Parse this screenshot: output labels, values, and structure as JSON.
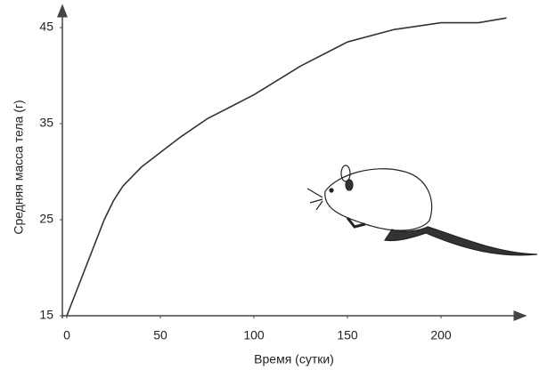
{
  "chart_data": {
    "type": "line",
    "x_label": "Время (сутки)",
    "y_label": "Средняя масса тела (г)",
    "x": [
      0,
      5,
      10,
      15,
      20,
      25,
      30,
      40,
      50,
      60,
      75,
      100,
      125,
      150,
      175,
      200,
      220,
      235
    ],
    "series": [
      {
        "color": "#333333",
        "values": [
          15,
          17.5,
          20,
          22.5,
          25,
          27,
          28.5,
          30.5,
          32,
          33.5,
          35.5,
          38,
          41,
          43.5,
          44.8,
          45.5,
          45.5,
          46
        ]
      }
    ],
    "xlim": [
      0,
      245
    ],
    "ylim": [
      15,
      47
    ],
    "xticks": [
      0,
      50,
      100,
      150,
      200
    ],
    "yticks": [
      15,
      25,
      35,
      45
    ],
    "grid": false
  }
}
